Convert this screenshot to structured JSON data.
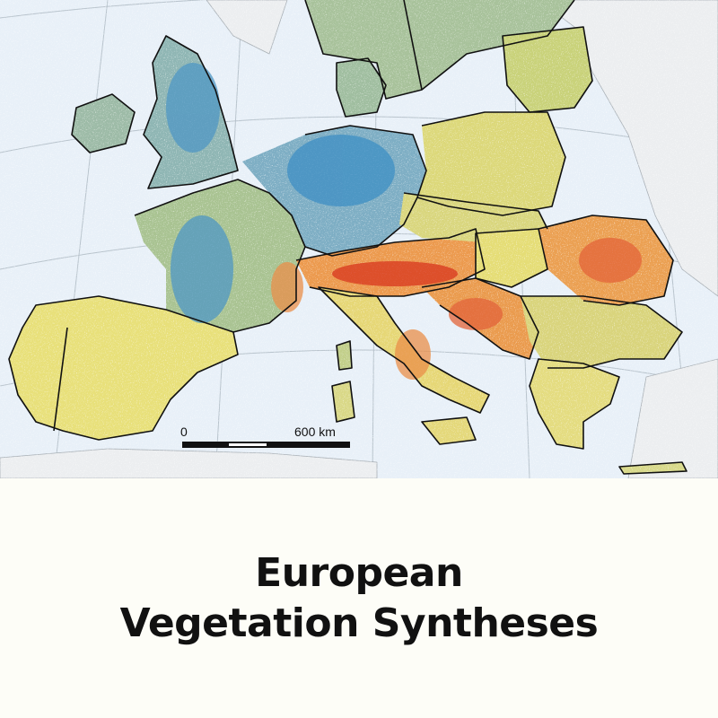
{
  "caption": {
    "line1": "European",
    "line2": "Vegetation Syntheses"
  },
  "scale_bar": {
    "start_label": "0",
    "end_label": "600 km"
  },
  "colors": {
    "sea": "#e8f0f8",
    "land_outside": "#eceef0",
    "low_blue": "#3e8fc4",
    "blue_green": "#8fb8a8",
    "green": "#b7cf7a",
    "yellow": "#eee475",
    "orange": "#f0a04a",
    "high_red": "#d8361e",
    "border": "#111111",
    "caption_bg": "#fdfdf7"
  },
  "icons": [
    "scale-bar"
  ]
}
